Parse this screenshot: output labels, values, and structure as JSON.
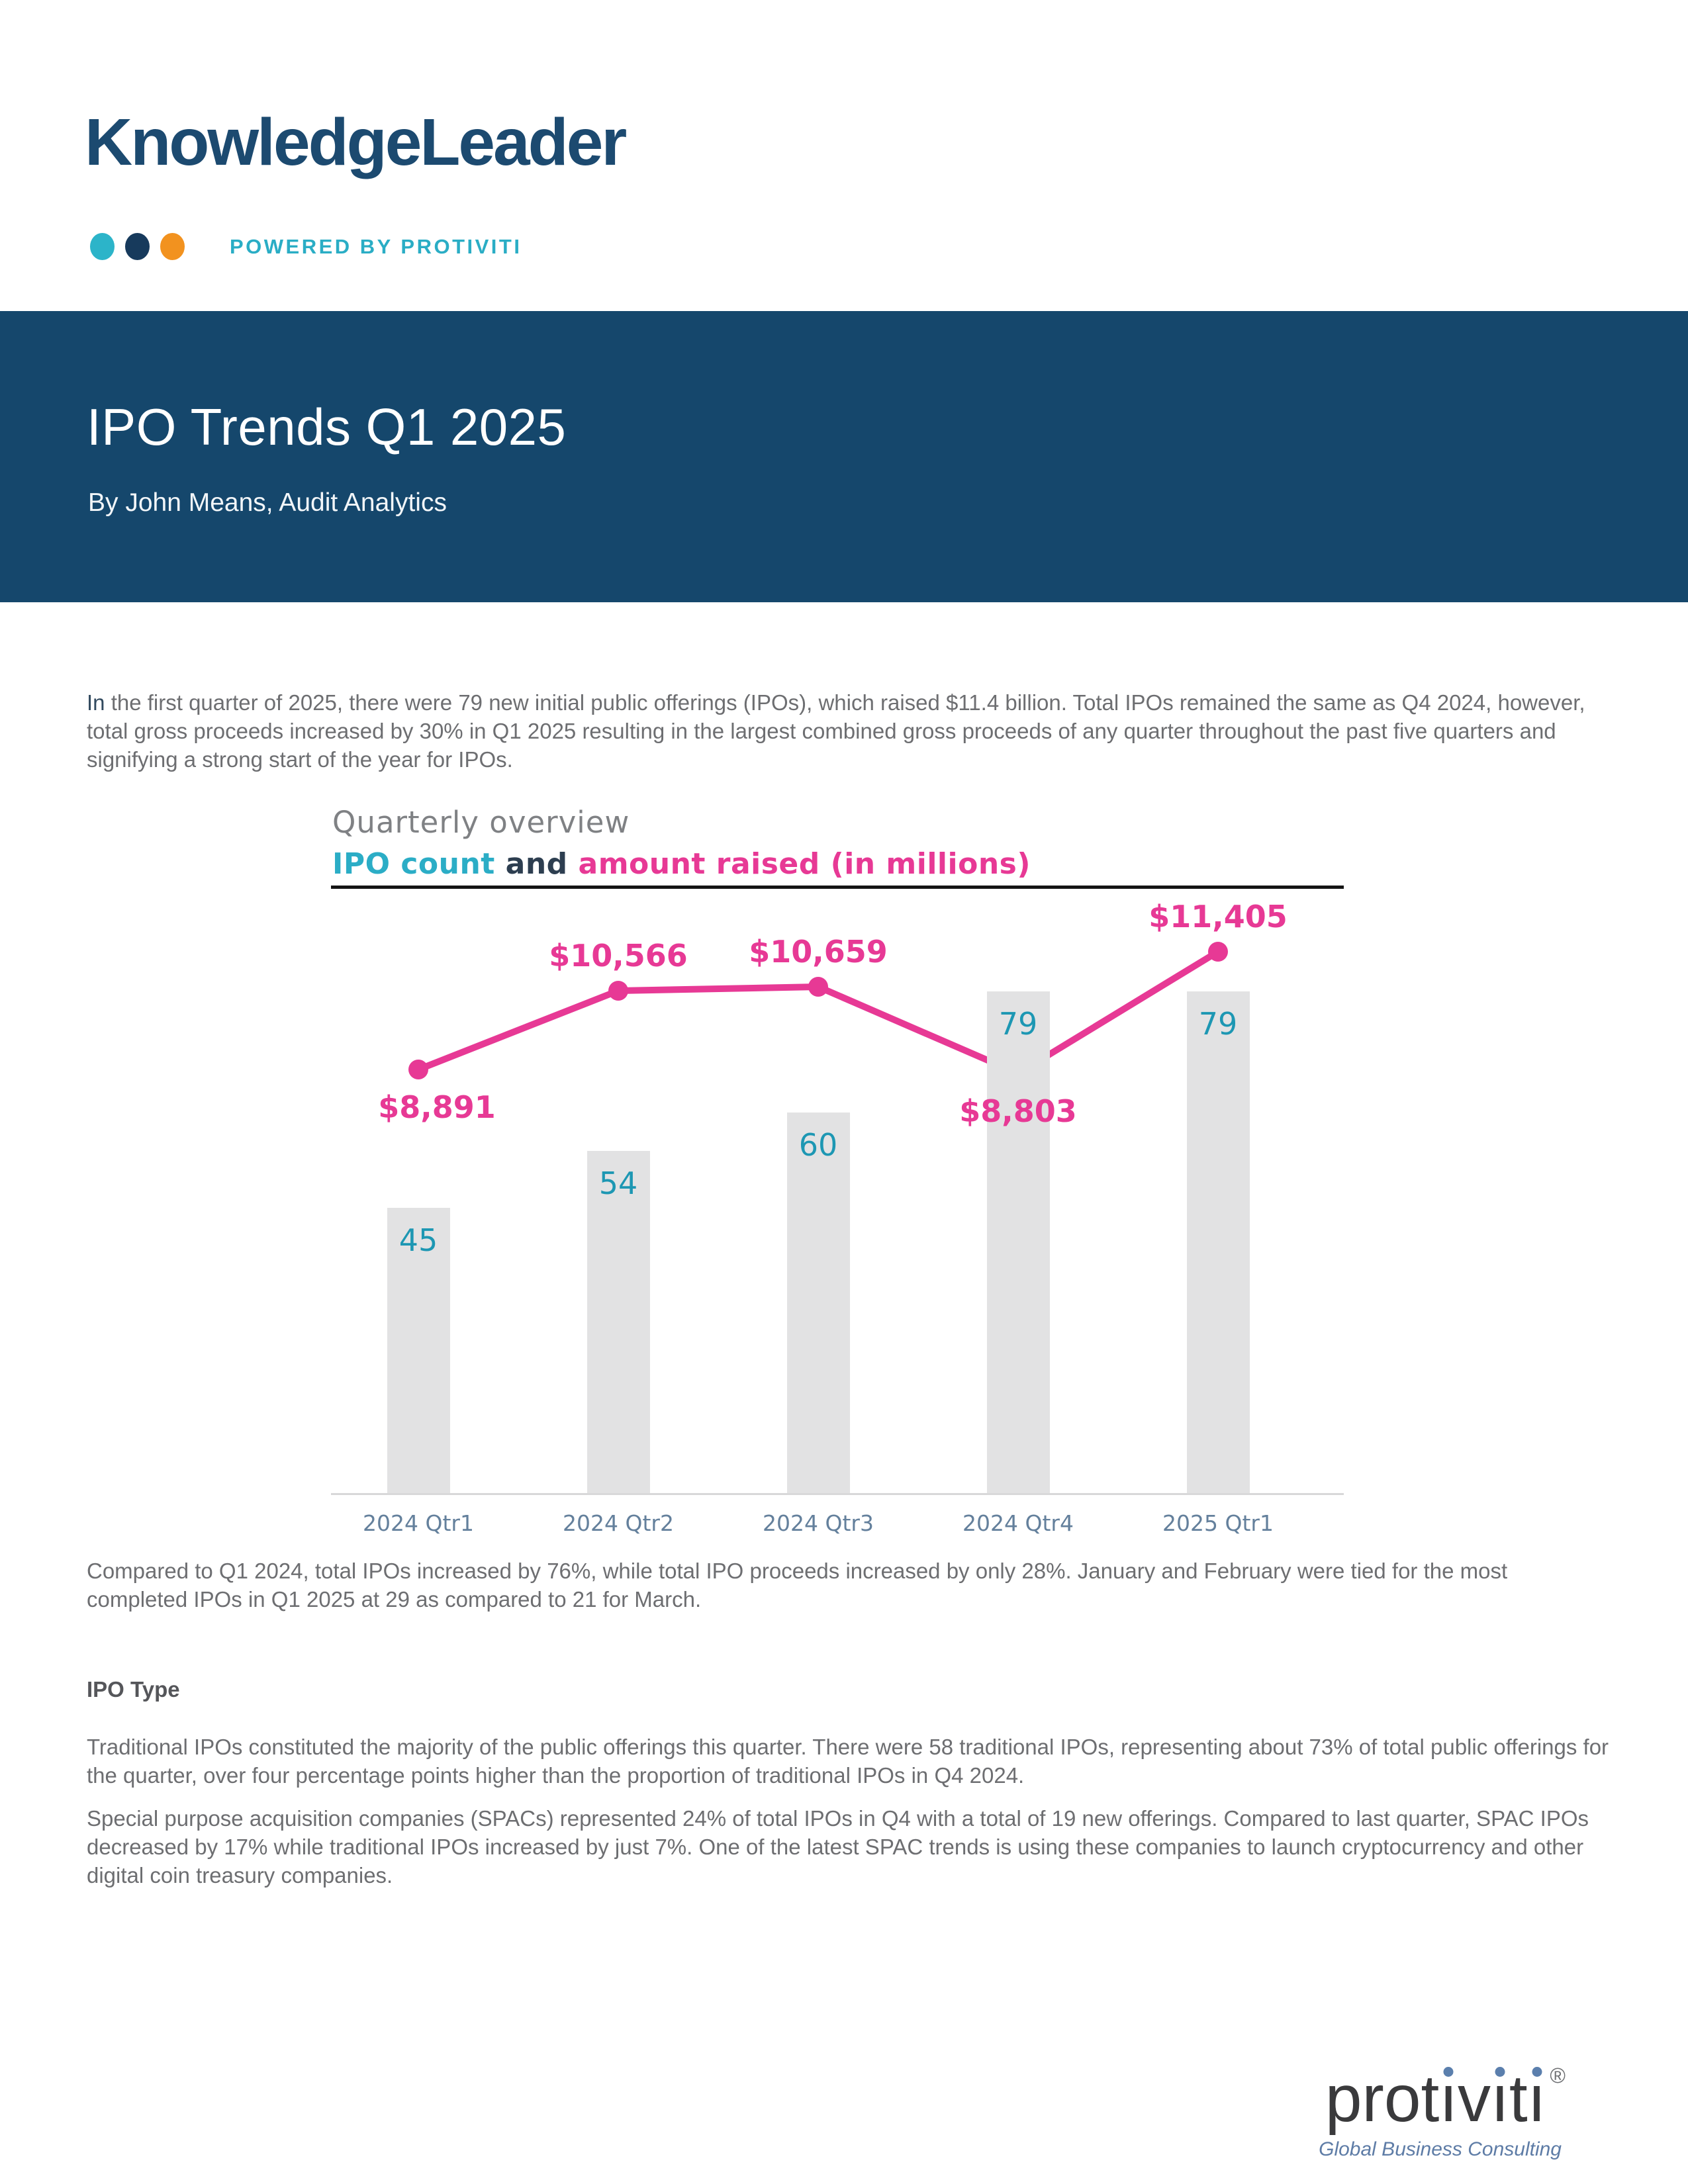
{
  "header": {
    "logo_text": "KnowledgeLeader",
    "powered_by": "POWERED BY PROTIVITI",
    "dot_colors": [
      "#2cb4c9",
      "#173a5c",
      "#f2921f"
    ]
  },
  "banner": {
    "title": "IPO Trends Q1 2025",
    "byline": "By John Means, Audit Analytics",
    "bg_color": "#15476c"
  },
  "intro": {
    "lead_word": "In",
    "rest": " the first quarter of 2025, there were 79 new initial public offerings (IPOs), which raised $11.4 billion. Total IPOs remained the same as Q4 2024, however, total gross proceeds increased by 30% in Q1 2025 resulting in the largest combined gross proceeds of any quarter throughout the past five quarters and signifying a strong start of the year for IPOs."
  },
  "chart_data": {
    "type": "bar+line",
    "title": "Quarterly overview",
    "subtitle_parts": [
      {
        "text": "IPO count",
        "color": "#2badc6"
      },
      {
        "text": " and ",
        "color": "#2d3e50"
      },
      {
        "text": "amount raised (in millions)",
        "color": "#e73995"
      }
    ],
    "categories": [
      "2024 Qtr1",
      "2024 Qtr2",
      "2024 Qtr3",
      "2024 Qtr4",
      "2025 Qtr1"
    ],
    "series": [
      {
        "name": "IPO count",
        "type": "bar",
        "color": "#e2e2e3",
        "label_color": "#1d97b3",
        "values": [
          45,
          54,
          60,
          79,
          79
        ]
      },
      {
        "name": "amount raised (in millions)",
        "type": "line",
        "color": "#e73995",
        "values": [
          8891,
          10566,
          10659,
          8803,
          11405
        ],
        "labels": [
          "$8,891",
          "$10,566",
          "$10,659",
          "$8,803",
          "$11,405"
        ]
      }
    ],
    "grid": false,
    "legend_position": "none",
    "axis_label_color": "#64809c"
  },
  "paragraphs": {
    "after_chart": "Compared to Q1 2024, total IPOs increased by 76%, while total IPO proceeds increased by only 28%. January and February were tied for the most completed IPOs in Q1 2025 at 29 as compared to 21 for March.",
    "section_heading": "IPO Type",
    "ipo_type_1": "Traditional IPOs constituted the majority of the public offerings this quarter. There were 58 traditional IPOs, representing about 73% of total public offerings for the quarter, over four percentage points higher than the proportion of traditional IPOs in Q4 2024.",
    "ipo_type_2": "Special purpose acquisition companies (SPACs) represented 24% of total IPOs in Q4 with a total of 19 new offerings. Compared to last quarter, SPAC IPOs decreased by 17% while traditional IPOs increased by just 7%. One of the latest SPAC trends is using these companies to launch cryptocurrency and other digital coin treasury companies."
  },
  "footer": {
    "logo_text": "protiviti",
    "registered_mark": "®",
    "tagline": "Global Business Consulting"
  }
}
